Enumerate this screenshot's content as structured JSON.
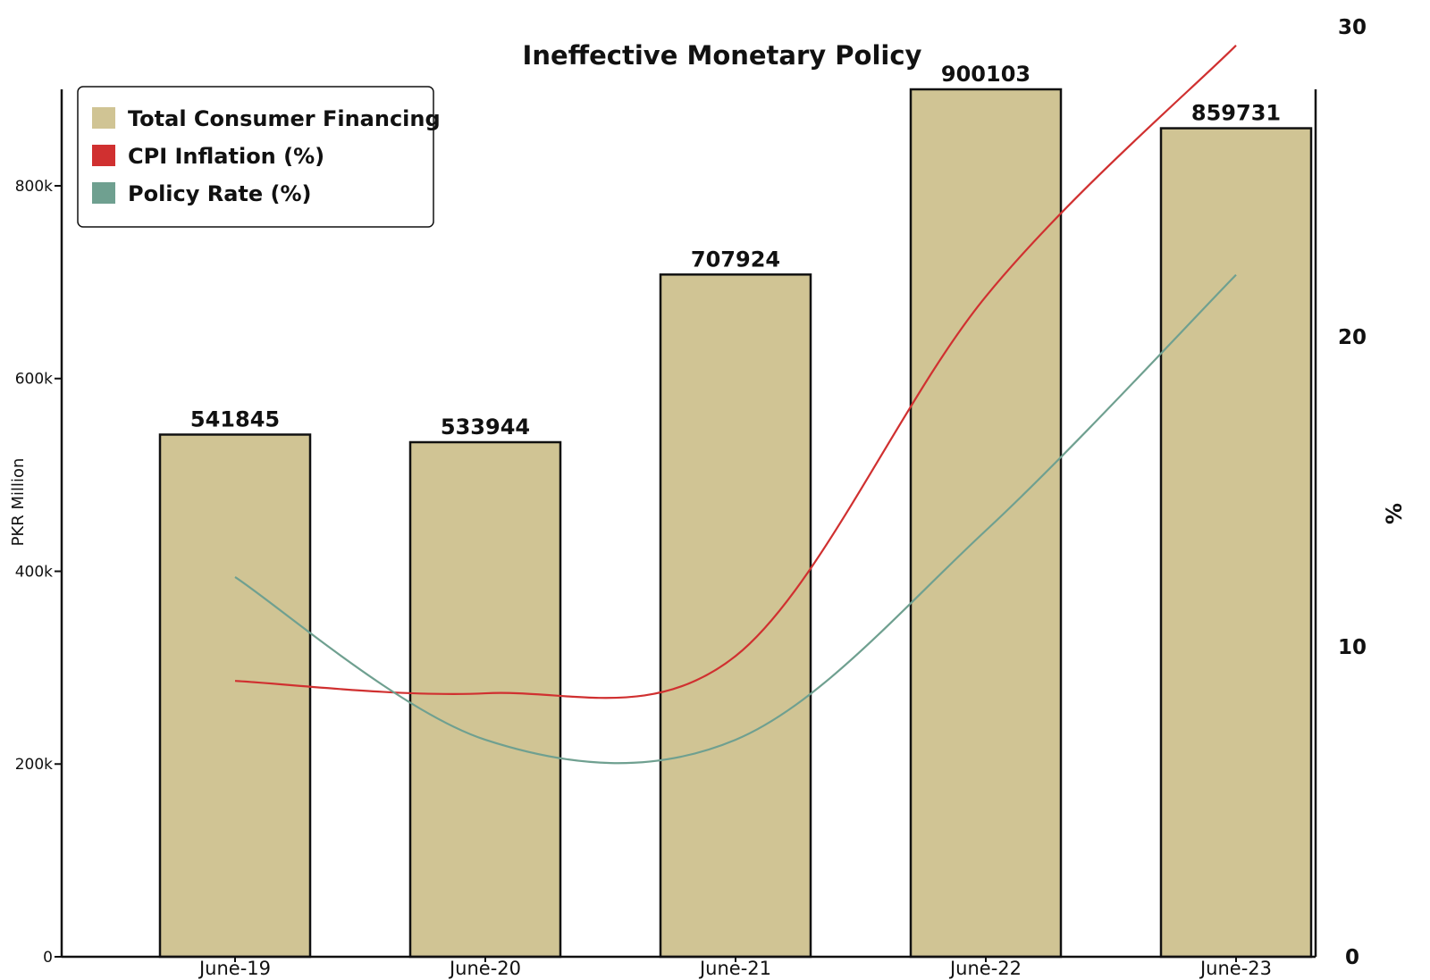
{
  "chart_data": {
    "type": "bar",
    "title": "Ineffective Monetary Policy",
    "categories": [
      "June-19",
      "June-20",
      "June-21",
      "June-22",
      "June-23"
    ],
    "series": [
      {
        "name": "Total Consumer Financing",
        "type": "bar",
        "axis": "left",
        "color": "#d0c494",
        "values": [
          541845,
          533944,
          707924,
          900103,
          859731
        ],
        "labels": [
          "541845",
          "533944",
          "707924",
          "900103",
          "859731"
        ]
      },
      {
        "name": "CPI Inflation (%)",
        "type": "line",
        "axis": "right",
        "color": "#d03030",
        "values": [
          8.9,
          8.5,
          9.7,
          21.3,
          29.4
        ]
      },
      {
        "name": "Policy Rate (%)",
        "type": "line",
        "axis": "right",
        "color": "#6fa090",
        "values": [
          12.25,
          7.0,
          7.0,
          13.75,
          22.0
        ]
      }
    ],
    "ylabel": "PKR Million",
    "ylim": [
      0,
      900103
    ],
    "yticks": [
      0,
      200000,
      400000,
      600000,
      800000
    ],
    "ytick_labels": [
      "0",
      "200k",
      "400k",
      "600k",
      "800k"
    ],
    "y2label": "%",
    "y2lim": [
      0,
      30
    ],
    "y2ticks": [
      0,
      10,
      20,
      30
    ],
    "y2tick_labels": [
      "0",
      "10",
      "20",
      "30"
    ],
    "grid": false,
    "legend_position": "top-left"
  }
}
